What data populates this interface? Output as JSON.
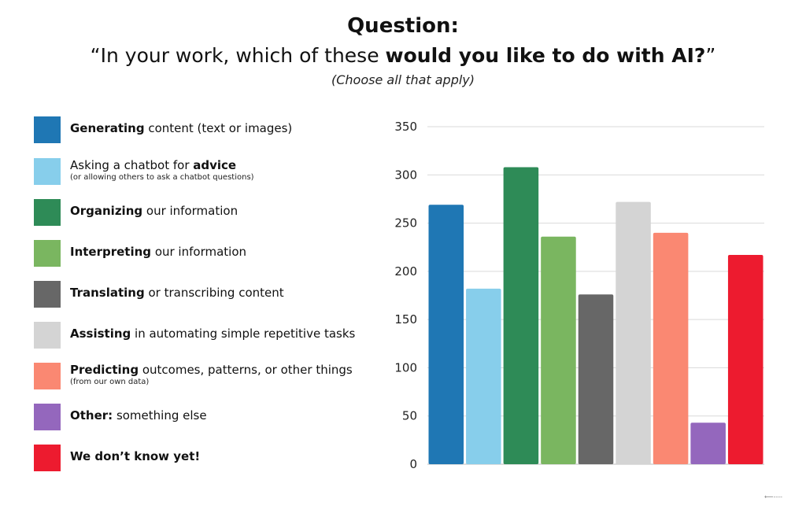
{
  "title": {
    "line1": "Question:",
    "line2_open": "“In your work, which of these ",
    "line2_bold": "would you like to do with AI?",
    "line2_close": "”",
    "subtitle": "(Choose all that apply)"
  },
  "legend": [
    {
      "bold": "Generating",
      "rest": " content (text or images)",
      "sub": "",
      "color": "#1f77b4"
    },
    {
      "bold": "",
      "pre": "Asking a chatbot for ",
      "bold_after": "advice",
      "rest": "",
      "sub": "(or allowing others to ask a chatbot questions)",
      "color": "#87ceeb"
    },
    {
      "bold": "Organizing",
      "rest": " our information",
      "sub": "",
      "color": "#2e8b57"
    },
    {
      "bold": "Interpreting",
      "rest": " our information",
      "sub": "",
      "color": "#7ab660"
    },
    {
      "bold": "Translating",
      "rest": " or transcribing content",
      "sub": "",
      "color": "#676767"
    },
    {
      "bold": "Assisting",
      "rest": " in automating simple repetitive tasks",
      "sub": "",
      "color": "#d4d4d4"
    },
    {
      "bold": "Predicting",
      "rest": " outcomes, patterns, or other things",
      "sub": "(from our own data)",
      "color": "#fa8872"
    },
    {
      "bold": "Other:",
      "rest": " something else",
      "sub": "",
      "color": "#9467bd"
    },
    {
      "bold": "We don’t know yet!",
      "rest": "",
      "sub": "",
      "color": "#ed1b2f"
    }
  ],
  "chart_data": {
    "type": "bar",
    "categories": [
      "Generating",
      "Asking a chatbot for advice",
      "Organizing",
      "Interpreting",
      "Translating",
      "Assisting",
      "Predicting",
      "Other",
      "We don’t know yet!"
    ],
    "values": [
      269,
      182,
      308,
      236,
      176,
      272,
      240,
      43,
      217
    ],
    "colors": [
      "#1f77b4",
      "#87ceeb",
      "#2e8b57",
      "#7ab660",
      "#676767",
      "#d4d4d4",
      "#fa8872",
      "#9467bd",
      "#ed1b2f"
    ],
    "ylim": [
      0,
      350
    ],
    "yticks": [
      0,
      50,
      100,
      150,
      200,
      250,
      300,
      350
    ],
    "grid": true,
    "legend_position": "left"
  },
  "footer_mark": "⟵----"
}
